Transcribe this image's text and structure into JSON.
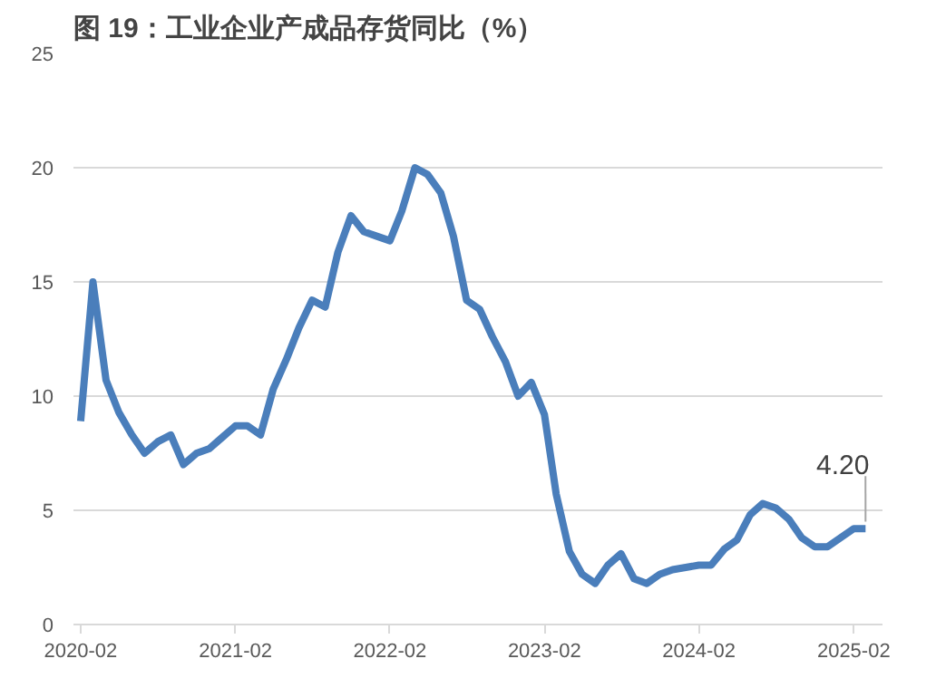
{
  "chart_data": {
    "type": "line",
    "title": "图 19：工业企业产成品存货同比（%）",
    "x": [
      "2020-02",
      "2020-03",
      "2020-04",
      "2020-05",
      "2020-06",
      "2020-07",
      "2020-08",
      "2020-09",
      "2020-10",
      "2020-11",
      "2020-12",
      "2021-01",
      "2021-02",
      "2021-03",
      "2021-04",
      "2021-05",
      "2021-06",
      "2021-07",
      "2021-08",
      "2021-09",
      "2021-10",
      "2021-11",
      "2021-12",
      "2022-01",
      "2022-02",
      "2022-03",
      "2022-04",
      "2022-05",
      "2022-06",
      "2022-07",
      "2022-08",
      "2022-09",
      "2022-10",
      "2022-11",
      "2022-12",
      "2023-01",
      "2023-02",
      "2023-03",
      "2023-04",
      "2023-05",
      "2023-06",
      "2023-07",
      "2023-08",
      "2023-09",
      "2023-10",
      "2023-11",
      "2023-12",
      "2024-01",
      "2024-02",
      "2024-03",
      "2024-04",
      "2024-05",
      "2024-06",
      "2024-07",
      "2024-08",
      "2024-09",
      "2024-10",
      "2024-11",
      "2024-12",
      "2025-01",
      "2025-02",
      "2025-03"
    ],
    "series": [
      {
        "color": "#4a7ebb",
        "values": [
          8.9,
          15.0,
          10.7,
          9.3,
          8.3,
          7.5,
          8.0,
          8.3,
          7.0,
          7.5,
          7.7,
          8.2,
          8.7,
          8.7,
          8.3,
          10.3,
          11.6,
          13.0,
          14.2,
          13.9,
          16.3,
          17.9,
          17.2,
          17.0,
          16.8,
          18.1,
          20.0,
          19.7,
          18.9,
          17.0,
          14.2,
          13.8,
          12.6,
          11.5,
          10.0,
          10.6,
          9.2,
          5.7,
          3.2,
          2.2,
          1.8,
          2.6,
          3.1,
          2.0,
          1.8,
          2.2,
          2.4,
          2.5,
          2.6,
          2.6,
          3.3,
          3.7,
          4.8,
          5.3,
          5.1,
          4.6,
          3.8,
          3.4,
          3.4,
          3.8,
          4.2,
          4.2
        ]
      }
    ],
    "xlim": [
      "2020-01-15",
      "2025-04-10"
    ],
    "xticks": [
      "2020-02",
      "2021-02",
      "2022-02",
      "2023-02",
      "2024-02",
      "2025-02"
    ],
    "ylim": [
      0,
      25
    ],
    "yticks": [
      0,
      5,
      10,
      15,
      20,
      25
    ],
    "grid": "y",
    "marker": "none",
    "line_style": "solid",
    "annotations": [
      {
        "text": "4.20",
        "x": "2025-03",
        "y": 4.2
      }
    ]
  }
}
